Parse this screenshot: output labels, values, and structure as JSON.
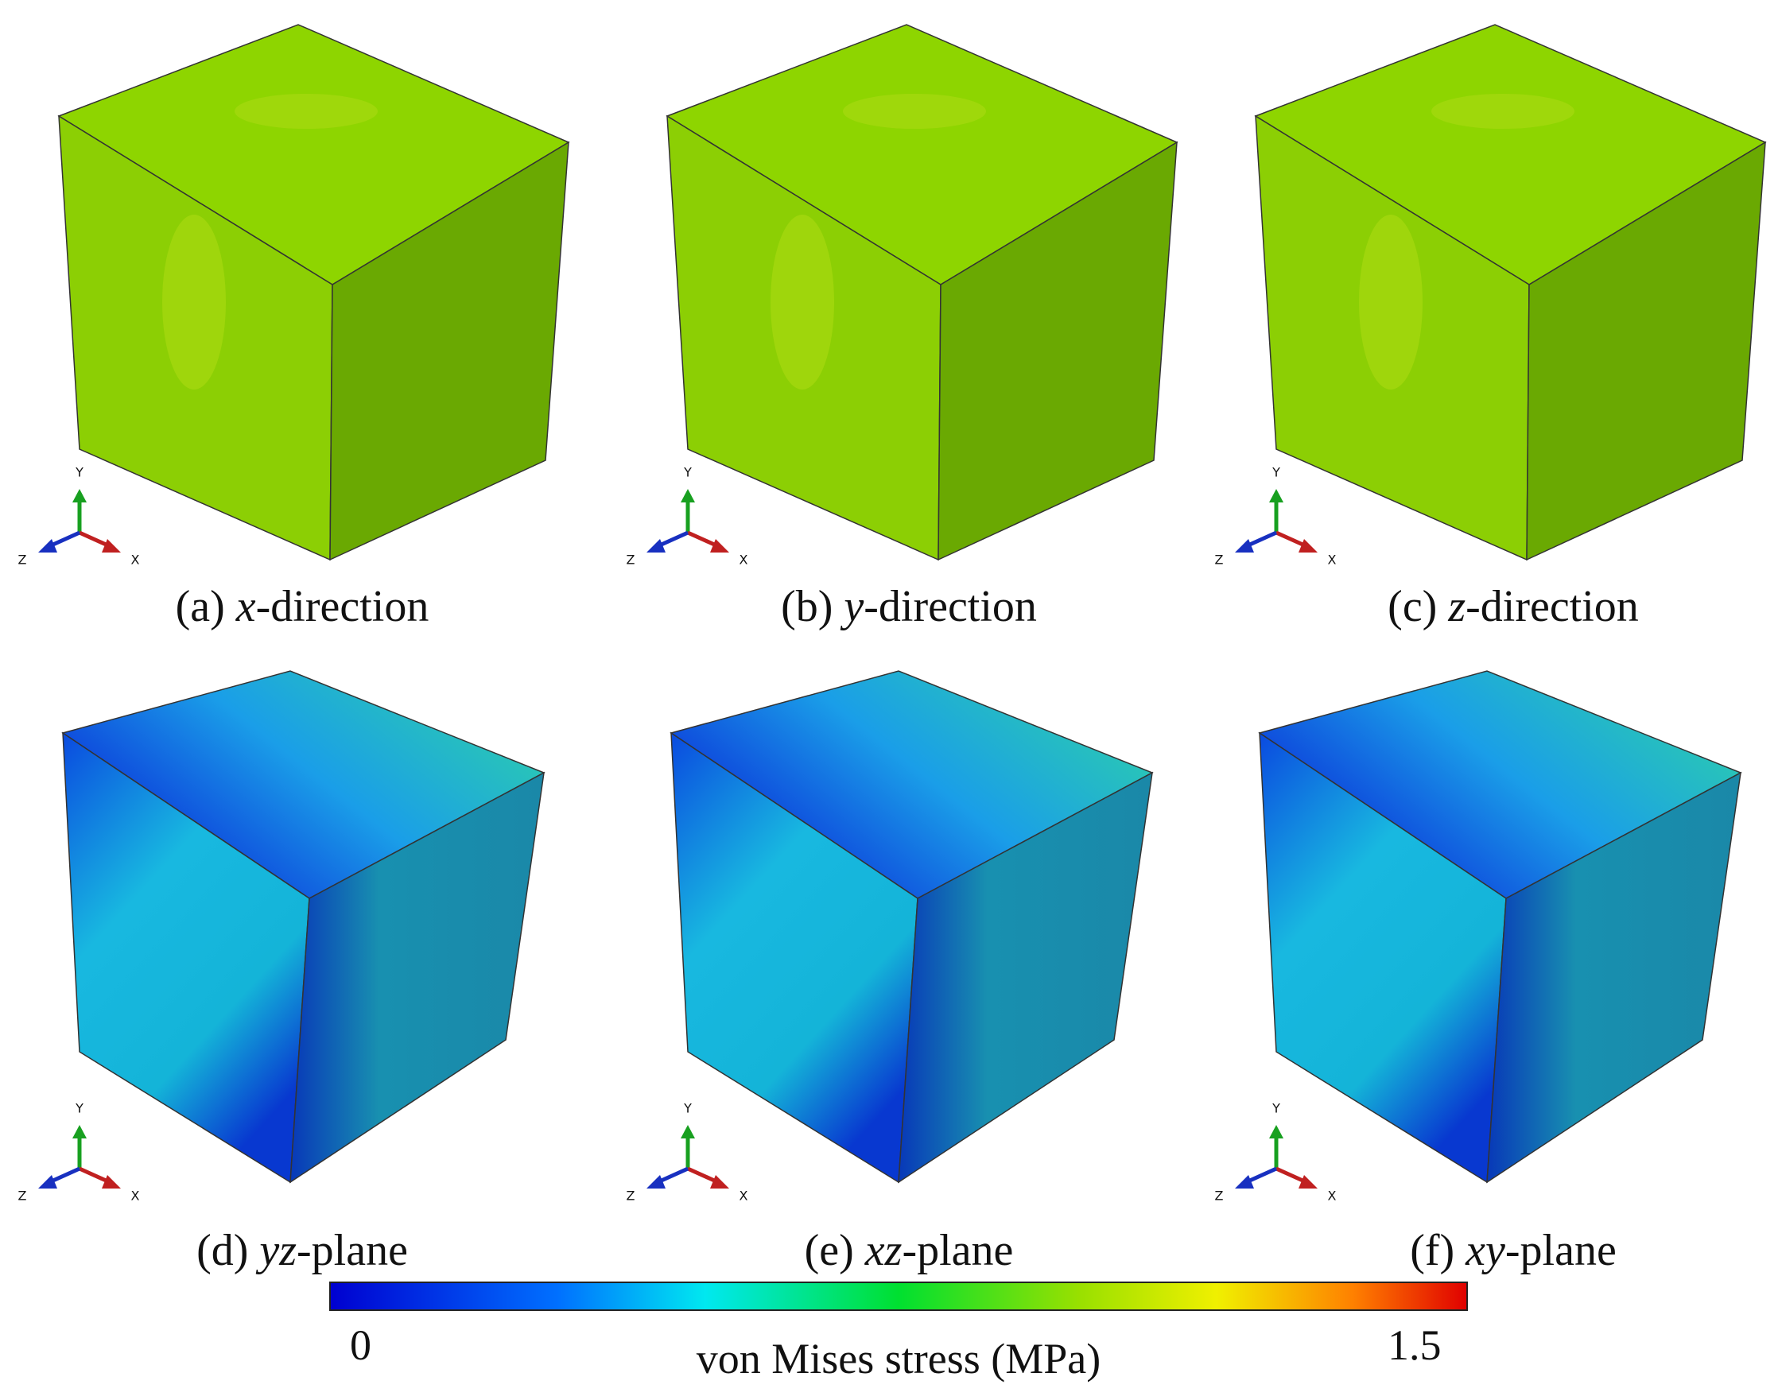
{
  "panels": [
    {
      "letter": "(a)",
      "var": "x",
      "suffix": "-direction",
      "triad": {
        "y": "Y",
        "z": "Z",
        "x": "X"
      }
    },
    {
      "letter": "(b)",
      "var": "y",
      "suffix": "-direction",
      "triad": {
        "y": "Y",
        "z": "Z",
        "x": "X"
      }
    },
    {
      "letter": "(c)",
      "var": "z",
      "suffix": "-direction",
      "triad": {
        "y": "Y",
        "z": "Z",
        "x": "X"
      }
    },
    {
      "letter": "(d)",
      "var": "yz",
      "suffix": "-plane",
      "triad": {
        "y": "Y",
        "z": "Z",
        "x": "X"
      }
    },
    {
      "letter": "(e)",
      "var": "xz",
      "suffix": "-plane",
      "triad": {
        "y": "Y",
        "z": "Z",
        "x": "X"
      }
    },
    {
      "letter": "(f)",
      "var": "xy",
      "suffix": "-plane",
      "triad": {
        "y": "Y",
        "z": "Z",
        "x": "X"
      }
    }
  ],
  "colorbar": {
    "min": 0,
    "max": 1.5,
    "label": "von Mises stress (MPa)"
  }
}
